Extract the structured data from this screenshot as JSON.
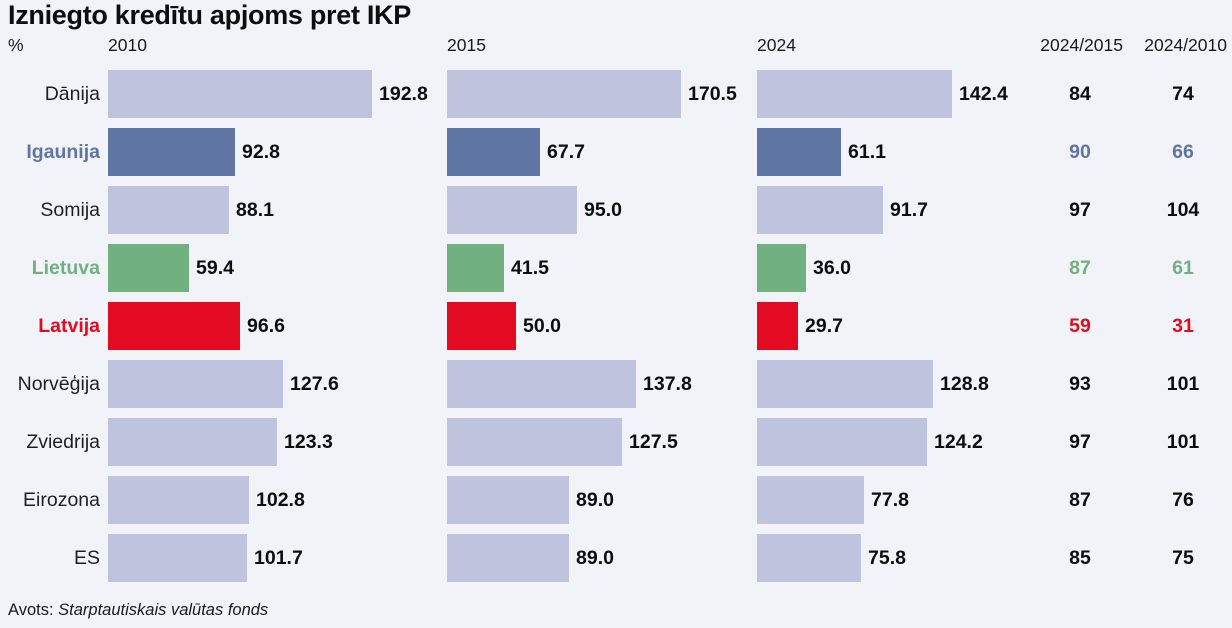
{
  "title": "Izniegto kredītu apjoms pret IKP",
  "unit_label": "%",
  "source": {
    "prefix": "Avots:",
    "name": "Starptautiskais valūtas fonds"
  },
  "colors": {
    "background": "#f2f3f8",
    "bar_default": "#bfc4de",
    "highlight_blue": "#5f75a3",
    "highlight_green": "#70b17f",
    "highlight_red": "#e30b21",
    "value_text": "#0d0d0d"
  },
  "chart_data": {
    "type": "bar",
    "title": "Izniegto kredītu apjoms pret IKP",
    "unit": "%",
    "orientation": "horizontal",
    "legend_position": "column headers top",
    "grid": false,
    "xlim": [
      0,
      200
    ],
    "categories": [
      "Dānija",
      "Igaunija",
      "Somija",
      "Lietuva",
      "Latvija",
      "Norvēģija",
      "Zviedrija",
      "Eirozona",
      "ES"
    ],
    "series": [
      {
        "name": "2010",
        "values": [
          192.8,
          92.8,
          88.1,
          59.4,
          96.6,
          127.6,
          123.3,
          102.8,
          101.7
        ],
        "labels": [
          "192.8",
          "92.8",
          "88.1",
          "59.4",
          "96.6",
          "127.6",
          "123.3",
          "102.8",
          "101.7"
        ]
      },
      {
        "name": "2015",
        "values": [
          170.5,
          67.7,
          95.0,
          41.5,
          50.0,
          137.8,
          127.5,
          89.0,
          89.0
        ],
        "labels": [
          "170.5",
          "67.7",
          "95.0",
          "41.5",
          "50.0",
          "137.8",
          "127.5",
          "89.0",
          "89.0"
        ]
      },
      {
        "name": "2024",
        "values": [
          142.4,
          61.1,
          91.7,
          36.0,
          29.7,
          128.8,
          124.2,
          77.8,
          75.8
        ],
        "labels": [
          "142.4",
          "61.1",
          "91.7",
          "36.0",
          "29.7",
          "128.8",
          "124.2",
          "77.8",
          "75.8"
        ]
      }
    ],
    "ratio_columns": [
      {
        "name": "2024/2015",
        "values": [
          "84",
          "90",
          "97",
          "87",
          "59",
          "93",
          "97",
          "87",
          "85"
        ]
      },
      {
        "name": "2024/2010",
        "values": [
          "74",
          "66",
          "104",
          "61",
          "31",
          "101",
          "101",
          "76",
          "75"
        ]
      }
    ],
    "row_highlights": [
      null,
      "highlight_blue",
      null,
      "highlight_green",
      "highlight_red",
      null,
      null,
      null,
      null
    ]
  }
}
